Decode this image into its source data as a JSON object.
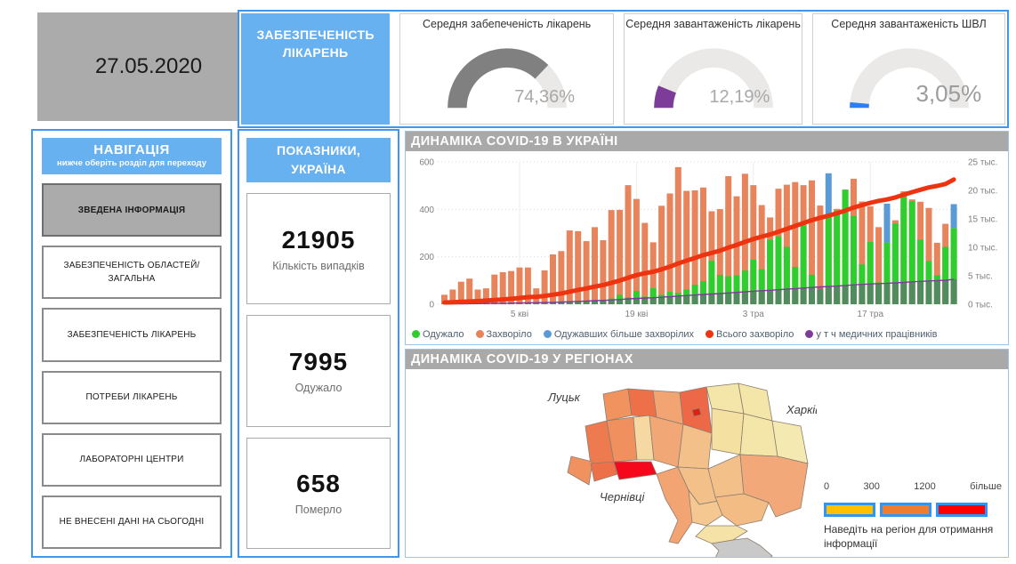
{
  "page": {
    "date": "27.05.2020"
  },
  "colors": {
    "accent_border": "#3E97EC",
    "header_blue": "#68B1F1",
    "gray_box": "#ABABAB",
    "titlebar_gray": "#A9A9A9",
    "gauge_track": "#EBE9E7"
  },
  "top_tab": {
    "label": "ЗАБЕЗПЕЧЕНІСТЬ ЛІКАРЕНЬ"
  },
  "gauges": [
    {
      "title": "Середня забепеченість лікарень",
      "value_label": "74,36%",
      "percent": 74.36,
      "color": "#808080"
    },
    {
      "title": "Середня завантаженість лікарень",
      "value_label": "12,19%",
      "percent": 12.19,
      "color": "#7D3C98"
    },
    {
      "title": "Середня завантаженість ШВЛ",
      "value_label": "3,05%",
      "percent": 3.05,
      "color": "#2B7FF0"
    }
  ],
  "navigation": {
    "title": "НАВІГАЦІЯ",
    "subtitle": "нижче оберіть розділ для переходу",
    "items": [
      {
        "label": "ЗВЕДЕНА ІНФОРМАЦІЯ",
        "active": true
      },
      {
        "label": "ЗАБЕЗПЕЧЕНІСТЬ ОБЛАСТЕЙ/ ЗАГАЛЬНА",
        "active": false
      },
      {
        "label": "ЗАБЕЗПЕЧЕНІСТЬ ЛІКАРЕНЬ",
        "active": false
      },
      {
        "label": "ПОТРЕБИ ЛІКАРЕНЬ",
        "active": false
      },
      {
        "label": "ЛАБОРАТОРНІ ЦЕНТРИ",
        "active": false
      },
      {
        "label": "НЕ ВНЕСЕНІ ДАНІ НА СЬОГОДНІ",
        "active": false
      }
    ]
  },
  "indicators": {
    "title": "ПОКАЗНИКИ, УКРАЇНА",
    "cards": [
      {
        "value": "21905",
        "label": "Кількість випадків"
      },
      {
        "value": "7995",
        "label": "Одужало"
      },
      {
        "value": "658",
        "label": "Померло"
      }
    ]
  },
  "chart_data": {
    "type": "bar+line combo, dual axis",
    "title": "ДИНАМІКА COVID-19 В УКРАЇНІ",
    "days": 62,
    "left_axis": {
      "max": 600,
      "ticks": [
        600,
        400,
        200,
        0
      ]
    },
    "right_axis": {
      "max": 25,
      "tick_values": [
        25,
        20,
        15,
        10,
        5,
        0
      ],
      "tick_labels": [
        "25 тыс.",
        "20 тыс.",
        "15 тыс.",
        "10 тыс.",
        "5 тыс.",
        "0 тыс."
      ]
    },
    "x_ticks": [
      {
        "i": 9,
        "label": "5 кві"
      },
      {
        "i": 23,
        "label": "19 кві"
      },
      {
        "i": 37,
        "label": "3 тра"
      },
      {
        "i": 51,
        "label": "17 тра"
      }
    ],
    "legend": [
      {
        "label": "Одужало",
        "color": "#2FCE2F"
      },
      {
        "label": "Захворіло",
        "color": "#E8845C"
      },
      {
        "label": "Одужавших більше захворілих",
        "color": "#5B9BD5"
      },
      {
        "label": "Всього захворіло",
        "color": "#EE3311"
      },
      {
        "label": "у т ч медичних працівників",
        "color": "#7D3C98"
      }
    ],
    "series": [
      {
        "name": "Захворіло",
        "axis": "left",
        "kind": "bar",
        "color": "#E8845C",
        "values": [
          40,
          62,
          95,
          108,
          62,
          67,
          125,
          135,
          140,
          155,
          155,
          67,
          143,
          210,
          224,
          311,
          308,
          266,
          325,
          270,
          397,
          398,
          502,
          444,
          343,
          261,
          415,
          467,
          578,
          478,
          480,
          492,
          392,
          401,
          540,
          455,
          550,
          502,
          418,
          366,
          487,
          504,
          515,
          502,
          522,
          416,
          375,
          402,
          483,
          529,
          433,
          413,
          325,
          260,
          354,
          476,
          442,
          432,
          406,
          259,
          339,
          321
        ]
      },
      {
        "name": "Одужало",
        "axis": "left",
        "kind": "bar",
        "color": "#2FCE2F",
        "values": [
          0,
          0,
          0,
          0,
          0,
          0,
          0,
          0,
          0,
          0,
          3,
          3,
          5,
          6,
          8,
          10,
          12,
          14,
          16,
          18,
          24,
          40,
          30,
          56,
          32,
          68,
          40,
          52,
          48,
          62,
          82,
          98,
          183,
          124,
          118,
          122,
          142,
          188,
          148,
          272,
          286,
          242,
          158,
          332,
          124,
          62,
          552,
          395,
          483,
          372,
          168,
          262,
          92,
          424,
          340,
          452,
          434,
          272,
          182,
          122,
          242,
          422
        ]
      },
      {
        "name": "Всього захворіло",
        "axis": "right",
        "kind": "line",
        "color": "#EE3311",
        "unit": "тыс.",
        "values": [
          0.31,
          0.36,
          0.42,
          0.48,
          0.55,
          0.64,
          0.73,
          0.84,
          0.96,
          1.1,
          1.25,
          1.32,
          1.46,
          1.67,
          1.89,
          2.2,
          2.51,
          2.78,
          3.1,
          3.37,
          3.76,
          4.16,
          4.66,
          5.11,
          5.45,
          5.71,
          6.13,
          6.59,
          7.17,
          7.65,
          8.13,
          8.62,
          9.01,
          9.41,
          9.95,
          10.41,
          10.96,
          11.46,
          11.88,
          12.25,
          12.73,
          13.23,
          13.75,
          14.25,
          14.77,
          15.19,
          15.57,
          15.97,
          16.45,
          16.98,
          17.41,
          17.82,
          18.15,
          18.41,
          18.76,
          19.24,
          19.68,
          20.11,
          20.52,
          20.78,
          21.12,
          21.9
        ]
      },
      {
        "name": "у т ч медичних працівників",
        "axis": "right",
        "kind": "bar-translucent",
        "color": "#7D3C98",
        "unit": "тыс.",
        "values": [
          0.06,
          0.07,
          0.08,
          0.1,
          0.11,
          0.13,
          0.15,
          0.17,
          0.19,
          0.22,
          0.25,
          0.26,
          0.29,
          0.33,
          0.38,
          0.44,
          0.5,
          0.56,
          0.62,
          0.67,
          0.75,
          0.83,
          0.93,
          1.02,
          1.09,
          1.14,
          1.23,
          1.32,
          1.43,
          1.53,
          1.63,
          1.72,
          1.8,
          1.88,
          1.99,
          2.08,
          2.19,
          2.29,
          2.38,
          2.45,
          2.55,
          2.65,
          2.75,
          2.85,
          2.95,
          3.04,
          3.11,
          3.19,
          3.29,
          3.4,
          3.48,
          3.56,
          3.63,
          3.68,
          3.75,
          3.85,
          3.94,
          4.02,
          4.1,
          4.16,
          4.22,
          4.38
        ]
      },
      {
        "name": "Одужавших більше захворілих",
        "axis": "left",
        "kind": "bar-overlay",
        "color": "#5B9BD5",
        "note": "drawn on days where recovered exceeds new cases",
        "day_indices": [
          46,
          53,
          61
        ]
      }
    ]
  },
  "map_section": {
    "title": "ДИНАМІКА COVID-19 У РЕГІОНАХ",
    "city_labels": [
      "Луцьк",
      "Харків",
      "Чернівці"
    ],
    "scale": {
      "tick_labels": [
        "0",
        "300",
        "1200",
        "більше"
      ],
      "colors": [
        "#FFC000",
        "#ED7D31",
        "#FE0000"
      ],
      "box_border": "#2E96F5"
    },
    "hint": "Наведіть на регіон для отримання інформації",
    "regions": {
      "volyn": "#F0935F",
      "rivne": "#EE7048",
      "zhytomyr": "#F2A572",
      "kyiv-oblast": "#ED6847",
      "kyiv-city": "#E01F10",
      "chernihiv": "#F4E6A8",
      "sumy": "#F4E6A8",
      "lviv": "#EE7B50",
      "ternopil": "#F0905E",
      "khmelnytskyi": "#F6D8A2",
      "vinnytsia": "#F2A876",
      "cherkasy": "#F4C08A",
      "poltava": "#F4E0A0",
      "kharkiv": "#F4E6A8",
      "luhansk": "#F4E9B0",
      "zakarpattia": "#F0925F",
      "ivano-frankivsk": "#EE7048",
      "chernivtsi": "#F5071C",
      "odesa": "#F2A572",
      "mykolaiv": "#F4C890",
      "kirovohrad": "#F4C08A",
      "dnipro": "#F4C08A",
      "zaporizhzhia": "#F2BC84",
      "donetsk": "#F2A878",
      "kherson": "#F4E2A6",
      "crimea": "#C9C9C9"
    }
  }
}
